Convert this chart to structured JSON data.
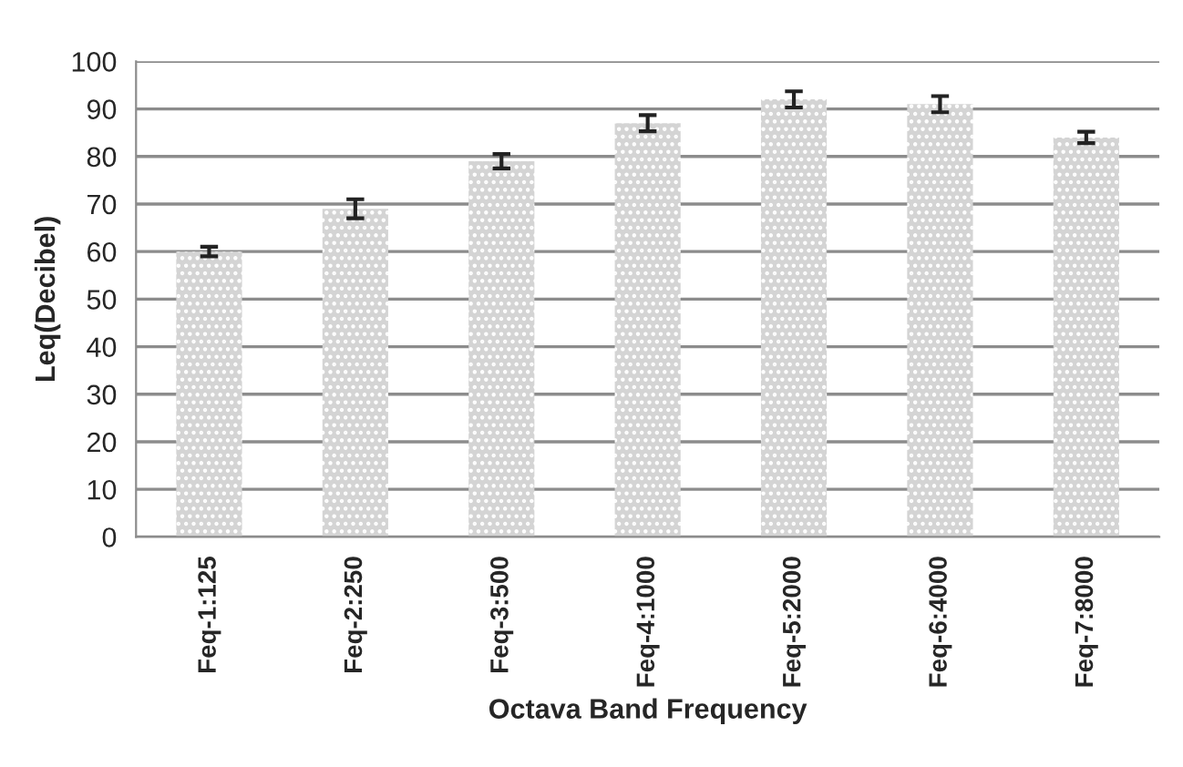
{
  "chart_data": {
    "type": "bar",
    "xlabel": "Octava Band Frequency",
    "ylabel": "Leq(Decibel)",
    "categories": [
      "Feq-1:125",
      "Feq-2:250",
      "Feq-3:500",
      "Feq-4:1000",
      "Feq-5:2000",
      "Feq-6:4000",
      "Feq-7:8000"
    ],
    "values": [
      60,
      69,
      79,
      87,
      92,
      91,
      84
    ],
    "errors": [
      1,
      2,
      1.5,
      1.7,
      1.7,
      1.7,
      1.2
    ],
    "color": "#d4d4d4",
    "ylim": [
      0,
      100
    ],
    "yticks": [
      0,
      10,
      20,
      30,
      40,
      50,
      60,
      70,
      80,
      90,
      100
    ],
    "grid": "y"
  }
}
